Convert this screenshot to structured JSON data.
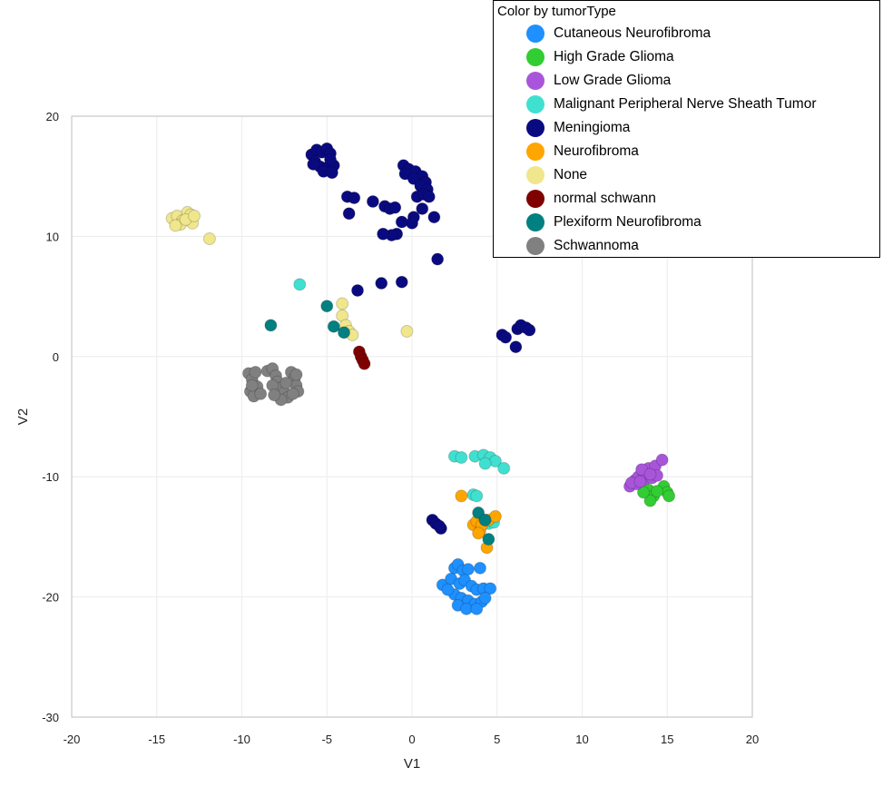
{
  "chart_data": {
    "type": "scatter",
    "title": "",
    "xlabel": "V1",
    "ylabel": "V2",
    "xlim": [
      -20,
      20
    ],
    "ylim": [
      -30,
      20
    ],
    "xticks": [
      -20,
      -15,
      -10,
      -5,
      0,
      5,
      10,
      15,
      20
    ],
    "yticks": [
      -30,
      -20,
      -10,
      0,
      10,
      20
    ],
    "grid": true,
    "legend": {
      "title": "Color by tumorType",
      "placement": "top-right"
    },
    "series": [
      {
        "name": "Cutaneous Neurofibroma",
        "color": "#1e90ff",
        "points": [
          [
            2.5,
            -17.6
          ],
          [
            2.7,
            -17.3
          ],
          [
            3,
            -17.8
          ],
          [
            3.3,
            -17.7
          ],
          [
            4,
            -17.6
          ],
          [
            1.8,
            -19
          ],
          [
            2.3,
            -18.5
          ],
          [
            2.8,
            -18.9
          ],
          [
            3.1,
            -18.6
          ],
          [
            3.5,
            -19.1
          ],
          [
            3.8,
            -19.4
          ],
          [
            4.2,
            -19.3
          ],
          [
            4.6,
            -19.3
          ],
          [
            2.5,
            -19.8
          ],
          [
            2.9,
            -20.1
          ],
          [
            3.3,
            -20.3
          ],
          [
            3.7,
            -20.6
          ],
          [
            4.1,
            -20.4
          ],
          [
            2.7,
            -20.7
          ],
          [
            3.2,
            -21
          ],
          [
            3.8,
            -21
          ],
          [
            4.3,
            -20.1
          ],
          [
            2.1,
            -19.4
          ]
        ]
      },
      {
        "name": "High Grade Glioma",
        "color": "#32cd32",
        "points": [
          [
            13.9,
            -11.1
          ],
          [
            14.2,
            -11.6
          ],
          [
            14,
            -12
          ],
          [
            14.8,
            -10.8
          ],
          [
            15,
            -11.3
          ],
          [
            15.1,
            -11.6
          ],
          [
            14.4,
            -11.2
          ],
          [
            13.6,
            -11.3
          ]
        ]
      },
      {
        "name": "Low Grade Glioma",
        "color": "#a855db",
        "points": [
          [
            12.8,
            -10.8
          ],
          [
            13.1,
            -10.3
          ],
          [
            13.3,
            -10
          ],
          [
            13.6,
            -9.6
          ],
          [
            13.9,
            -9.3
          ],
          [
            14.3,
            -9.1
          ],
          [
            14.7,
            -8.6
          ],
          [
            13.2,
            -10.6
          ],
          [
            13.7,
            -10.2
          ],
          [
            14.1,
            -10.1
          ],
          [
            14.4,
            -9.9
          ],
          [
            13.5,
            -9.4
          ],
          [
            14,
            -9.8
          ],
          [
            12.9,
            -10.5
          ],
          [
            13.4,
            -10.4
          ]
        ]
      },
      {
        "name": "Malignant Peripheral Nerve Sheath Tumor",
        "color": "#40e0d0",
        "points": [
          [
            -6.6,
            6
          ],
          [
            2.5,
            -8.3
          ],
          [
            2.9,
            -8.4
          ],
          [
            3.7,
            -8.3
          ],
          [
            4.2,
            -8.2
          ],
          [
            4.6,
            -8.4
          ],
          [
            4.9,
            -8.7
          ],
          [
            4.3,
            -8.9
          ],
          [
            5.4,
            -9.3
          ],
          [
            3.6,
            -11.5
          ],
          [
            3.8,
            -11.6
          ],
          [
            4.5,
            -13.9
          ],
          [
            4.8,
            -13.8
          ]
        ]
      },
      {
        "name": "Meningioma",
        "color": "#0a0a80",
        "points": [
          [
            -5.9,
            16.8
          ],
          [
            -5.6,
            17.2
          ],
          [
            -5.3,
            17
          ],
          [
            -5,
            17.3
          ],
          [
            -4.8,
            16.9
          ],
          [
            -5.7,
            16.2
          ],
          [
            -5.4,
            15.8
          ],
          [
            -5,
            15.7
          ],
          [
            -4.6,
            15.9
          ],
          [
            -4.8,
            16.4
          ],
          [
            -5.2,
            15.4
          ],
          [
            -4.7,
            15.3
          ],
          [
            -5.8,
            16
          ],
          [
            -0.5,
            15.9
          ],
          [
            -0.2,
            15.6
          ],
          [
            0.2,
            15.4
          ],
          [
            0.6,
            15
          ],
          [
            0.8,
            14.5
          ],
          [
            -0.4,
            15.2
          ],
          [
            0.1,
            14.8
          ],
          [
            0.5,
            14.2
          ],
          [
            0.9,
            13.9
          ],
          [
            0.3,
            13.3
          ],
          [
            0.7,
            13.5
          ],
          [
            1,
            13.3
          ],
          [
            0.6,
            12.3
          ],
          [
            0.1,
            11.6
          ],
          [
            0,
            11.1
          ],
          [
            1.3,
            11.6
          ],
          [
            -0.9,
            10.2
          ],
          [
            -0.6,
            11.2
          ],
          [
            -1.2,
            10.1
          ],
          [
            -1.7,
            10.2
          ],
          [
            -3.8,
            13.3
          ],
          [
            -3.4,
            13.2
          ],
          [
            -2.3,
            12.9
          ],
          [
            -1.6,
            12.5
          ],
          [
            -1.3,
            12.3
          ],
          [
            -1,
            12.4
          ],
          [
            -3.7,
            11.9
          ],
          [
            1.5,
            8.1
          ],
          [
            -0.6,
            6.2
          ],
          [
            -1.8,
            6.1
          ],
          [
            -3.2,
            5.5
          ],
          [
            5.3,
            1.8
          ],
          [
            5.5,
            1.6
          ],
          [
            6.1,
            0.8
          ],
          [
            6.2,
            2.3
          ],
          [
            6.4,
            2.6
          ],
          [
            6.7,
            2.4
          ],
          [
            6.9,
            2.2
          ],
          [
            1.2,
            -13.6
          ],
          [
            1.4,
            -13.9
          ],
          [
            1.7,
            -14.3
          ],
          [
            1.6,
            -14.1
          ]
        ]
      },
      {
        "name": "Neurofibroma",
        "color": "#ffa500",
        "points": [
          [
            2.9,
            -11.6
          ],
          [
            3.6,
            -14
          ],
          [
            3.8,
            -13.7
          ],
          [
            4,
            -14.5
          ],
          [
            4.1,
            -14
          ],
          [
            4.3,
            -13.6
          ],
          [
            4.5,
            -13.6
          ],
          [
            4.9,
            -13.3
          ],
          [
            4.4,
            -15.9
          ],
          [
            3.9,
            -14.7
          ]
        ]
      },
      {
        "name": "None",
        "color": "#f0e68c",
        "points": [
          [
            -14.1,
            11.5
          ],
          [
            -13.8,
            11.7
          ],
          [
            -13.5,
            11.3
          ],
          [
            -13.2,
            12
          ],
          [
            -13,
            11.8
          ],
          [
            -12.9,
            11.1
          ],
          [
            -13.6,
            11
          ],
          [
            -13.9,
            10.9
          ],
          [
            -13.3,
            11.4
          ],
          [
            -12.8,
            11.7
          ],
          [
            -11.9,
            9.8
          ],
          [
            -4.1,
            4.4
          ],
          [
            -4.1,
            3.4
          ],
          [
            -3.9,
            2.6
          ],
          [
            -3.7,
            2.1
          ],
          [
            -3.5,
            1.8
          ],
          [
            -0.3,
            2.1
          ]
        ]
      },
      {
        "name": "normal schwann",
        "color": "#800000",
        "points": [
          [
            -3.1,
            0.4
          ],
          [
            -3,
            0
          ],
          [
            -2.9,
            -0.3
          ],
          [
            -2.8,
            -0.6
          ]
        ]
      },
      {
        "name": "Plexiform Neurofibroma",
        "color": "#008080",
        "points": [
          [
            -8.3,
            2.6
          ],
          [
            -5,
            4.2
          ],
          [
            -4.6,
            2.5
          ],
          [
            -4,
            2
          ],
          [
            3.9,
            -13
          ],
          [
            4.3,
            -13.6
          ],
          [
            4.5,
            -15.2
          ]
        ]
      },
      {
        "name": "Schwannoma",
        "color": "#808080",
        "points": [
          [
            -9.6,
            -1.4
          ],
          [
            -9.4,
            -1.9
          ],
          [
            -9.2,
            -1.3
          ],
          [
            -9.1,
            -2.5
          ],
          [
            -9.5,
            -2.9
          ],
          [
            -9.3,
            -3.3
          ],
          [
            -8.9,
            -3.1
          ],
          [
            -8.5,
            -1.2
          ],
          [
            -8.2,
            -1
          ],
          [
            -8,
            -1.6
          ],
          [
            -7.9,
            -2.1
          ],
          [
            -7.7,
            -2.6
          ],
          [
            -7.5,
            -3
          ],
          [
            -7.3,
            -3.4
          ],
          [
            -7.7,
            -3.6
          ],
          [
            -7.1,
            -1.3
          ],
          [
            -6.9,
            -1.8
          ],
          [
            -6.8,
            -2.4
          ],
          [
            -6.7,
            -2.9
          ],
          [
            -7,
            -3.1
          ],
          [
            -8.2,
            -2.4
          ],
          [
            -7.4,
            -2.2
          ],
          [
            -9.4,
            -2.4
          ],
          [
            -8.1,
            -3.2
          ],
          [
            -6.8,
            -1.5
          ]
        ]
      }
    ]
  }
}
